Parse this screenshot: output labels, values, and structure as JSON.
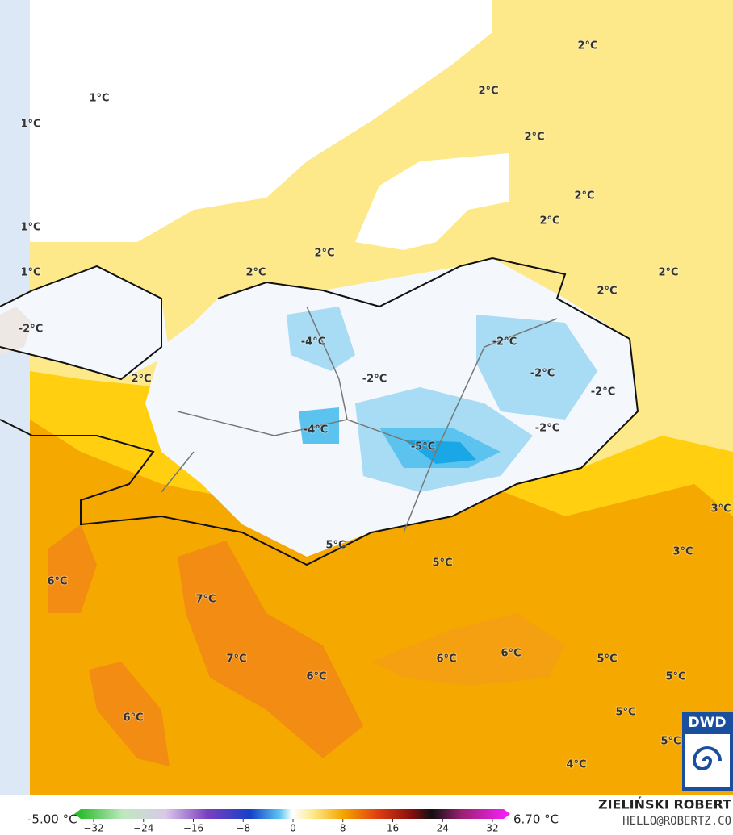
{
  "map": {
    "labels": [
      "2°C",
      "1°C",
      "2°C",
      "1°C",
      "2°C",
      "2°C",
      "2°C",
      "1°C",
      "2°C",
      "2°C",
      "1°C",
      "2°C",
      "2°C",
      "-2°C",
      "-4°C",
      "-2°C",
      "2°C",
      "-2°C",
      "-2°C",
      "-2°C",
      "-4°C",
      "-2°C",
      "-5°C",
      "3°C",
      "5°C",
      "3°C",
      "5°C",
      "6°C",
      "7°C",
      "6°C",
      "7°C",
      "6°C",
      "6°C",
      "5°C",
      "5°C",
      "5°C",
      "6°C",
      "5°C",
      "4°C"
    ],
    "colorbar": {
      "min_label": "-5.00 °C",
      "max_label": "6.70 °C",
      "ticks": [
        "−32",
        "−24",
        "−16",
        "−8",
        "0",
        "8",
        "16",
        "24",
        "32"
      ]
    },
    "credit": {
      "name": "ZIELIŃSKI ROBERT",
      "contact": "HELLO@ROBERTZ.CO"
    },
    "logo": "DWD"
  }
}
